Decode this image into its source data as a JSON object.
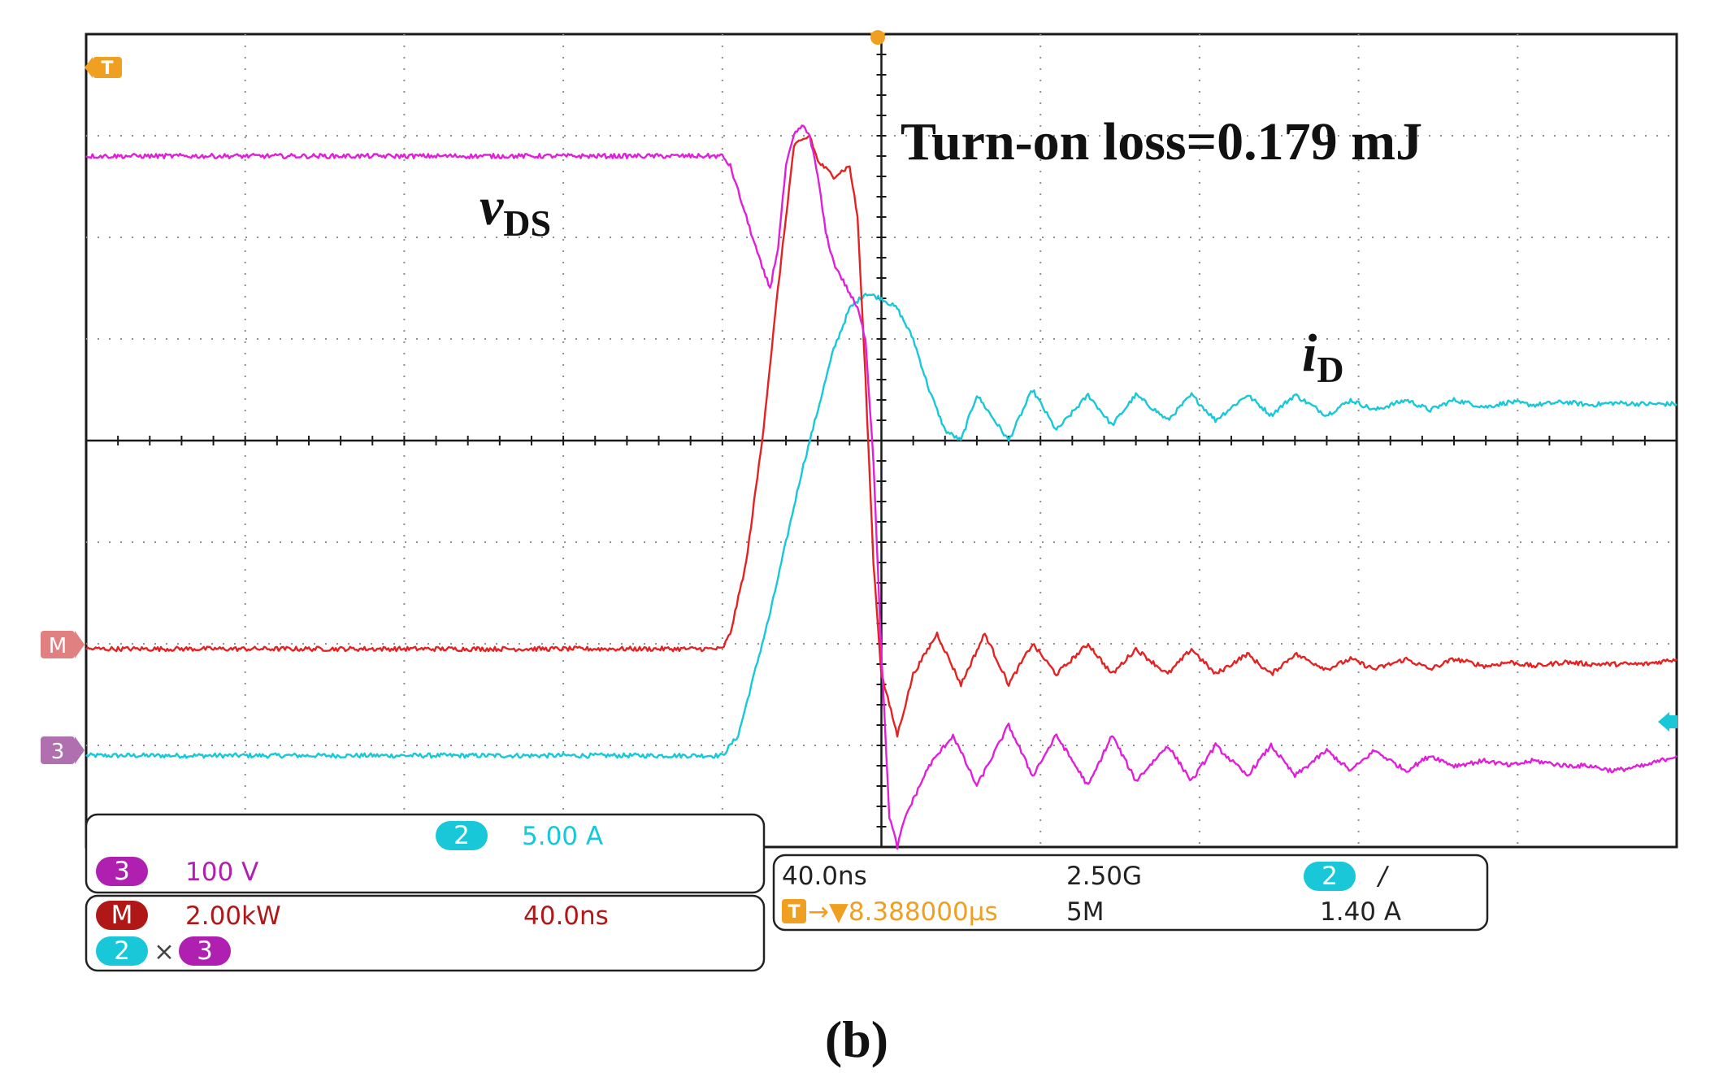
{
  "figure": {
    "panel_label": "(b)",
    "annotation": "Turn-on loss=0.179 mJ",
    "label_vds": {
      "main": "v",
      "sub": "DS"
    },
    "label_id": {
      "main": "i",
      "sub": "D"
    }
  },
  "colors": {
    "ch2": "#18c8d8",
    "ch3": "#e020d8",
    "math": "#e42222",
    "trigger": "#f0a020",
    "grid": "#909090",
    "axis": "#1a1a1a",
    "ch3_badge": "#b020b0",
    "math_badge": "#b01818"
  },
  "markers": {
    "trigger_top": "T",
    "math_left": "M",
    "ch3_left": "3"
  },
  "readout": {
    "ch2_badge": "2",
    "ch2_scale": "5.00 A",
    "ch3_badge": "3",
    "ch3_scale": "100 V",
    "math_badge": "M",
    "math_scale": "2.00kW",
    "math_time": "40.0ns",
    "math_expr": {
      "a": "2",
      "op": "×",
      "b": "3"
    },
    "timebase": "40.0ns",
    "sample_rate": "2.50G",
    "record_length": "5M",
    "trig_source": "2",
    "trig_slope": "/",
    "trig_level": "1.40 A",
    "trig_icon": "T",
    "trig_position": "→▼8.388000µs"
  },
  "chart_data": {
    "type": "line",
    "title": "Turn-on loss=0.179 mJ",
    "xlabel": "",
    "ylabel": "",
    "grid": true,
    "x_unit": "divisions (40.0 ns/div)",
    "y_unit": "divisions from screen center",
    "xlim": [
      -5,
      5
    ],
    "ylim": [
      -4,
      4
    ],
    "series": [
      {
        "name": "vDS (CH3, 100 V/div)",
        "color_key": "ch3",
        "x": [
          -5,
          -1,
          -0.95,
          -0.85,
          -0.75,
          -0.7,
          -0.65,
          -0.6,
          -0.55,
          -0.5,
          -0.45,
          -0.4,
          -0.35,
          -0.3,
          -0.25,
          -0.2,
          -0.15,
          -0.1,
          -0.05,
          0,
          0.05,
          0.1,
          0.15,
          0.3,
          0.45,
          0.6,
          0.8,
          0.95,
          1.1,
          1.3,
          1.45,
          1.6,
          1.8,
          1.95,
          2.1,
          2.3,
          2.45,
          2.6,
          2.8,
          2.95,
          3.1,
          3.3,
          3.45,
          3.6,
          3.8,
          3.95,
          4.1,
          4.3,
          4.45,
          4.6,
          4.8,
          5
        ],
        "y": [
          2.8,
          2.8,
          2.7,
          2.2,
          1.7,
          1.5,
          1.9,
          2.7,
          3.0,
          3.1,
          3.0,
          2.6,
          2.05,
          1.75,
          1.6,
          1.45,
          1.3,
          1.0,
          -0.2,
          -2.1,
          -3.7,
          -4.0,
          -3.7,
          -3.2,
          -2.9,
          -3.4,
          -2.8,
          -3.3,
          -2.9,
          -3.4,
          -2.9,
          -3.35,
          -3.0,
          -3.35,
          -3.0,
          -3.3,
          -3.0,
          -3.3,
          -3.05,
          -3.25,
          -3.05,
          -3.25,
          -3.1,
          -3.2,
          -3.15,
          -3.2,
          -3.15,
          -3.2,
          -3.2,
          -3.25,
          -3.2,
          -3.1
        ]
      },
      {
        "name": "iD (CH2, 5.00 A/div)",
        "color_key": "ch2",
        "x": [
          -5,
          -1,
          -0.9,
          -0.8,
          -0.7,
          -0.6,
          -0.5,
          -0.4,
          -0.3,
          -0.2,
          -0.1,
          0,
          0.1,
          0.2,
          0.3,
          0.4,
          0.5,
          0.6,
          0.8,
          0.95,
          1.1,
          1.3,
          1.45,
          1.6,
          1.8,
          1.95,
          2.1,
          2.3,
          2.45,
          2.6,
          2.8,
          2.95,
          3.1,
          3.3,
          3.45,
          3.6,
          3.8,
          3.95,
          4.1,
          4.3,
          4.45,
          4.6,
          4.8,
          5
        ],
        "y": [
          -3.1,
          -3.1,
          -2.9,
          -2.3,
          -1.7,
          -1.0,
          -0.3,
          0.3,
          0.9,
          1.3,
          1.45,
          1.4,
          1.3,
          1.0,
          0.5,
          0.1,
          0.0,
          0.45,
          0.0,
          0.5,
          0.1,
          0.45,
          0.15,
          0.45,
          0.2,
          0.45,
          0.2,
          0.45,
          0.25,
          0.45,
          0.25,
          0.4,
          0.3,
          0.4,
          0.3,
          0.4,
          0.33,
          0.38,
          0.35,
          0.38,
          0.35,
          0.37,
          0.36,
          0.36
        ]
      },
      {
        "name": "Power (Math CH2×CH3, 2.00 kW/div)",
        "color_key": "math",
        "x": [
          -5,
          -1,
          -0.95,
          -0.85,
          -0.75,
          -0.65,
          -0.55,
          -0.45,
          -0.4,
          -0.3,
          -0.2,
          -0.15,
          -0.1,
          -0.05,
          0,
          0.05,
          0.1,
          0.2,
          0.35,
          0.5,
          0.65,
          0.8,
          0.95,
          1.1,
          1.3,
          1.45,
          1.6,
          1.8,
          1.95,
          2.1,
          2.3,
          2.45,
          2.6,
          2.8,
          2.95,
          3.1,
          3.3,
          3.45,
          3.6,
          3.8,
          3.95,
          4.1,
          4.3,
          4.45,
          4.6,
          4.8,
          5
        ],
        "y": [
          -2.05,
          -2.05,
          -1.9,
          -1.2,
          0.0,
          1.5,
          2.9,
          3.0,
          2.75,
          2.6,
          2.7,
          2.2,
          0.6,
          -1.2,
          -2.3,
          -2.6,
          -2.9,
          -2.3,
          -1.9,
          -2.4,
          -1.9,
          -2.4,
          -2.0,
          -2.3,
          -2.0,
          -2.3,
          -2.05,
          -2.3,
          -2.05,
          -2.3,
          -2.1,
          -2.3,
          -2.1,
          -2.25,
          -2.15,
          -2.25,
          -2.15,
          -2.25,
          -2.15,
          -2.22,
          -2.18,
          -2.22,
          -2.18,
          -2.2,
          -2.2,
          -2.2,
          -2.15
        ]
      }
    ]
  }
}
